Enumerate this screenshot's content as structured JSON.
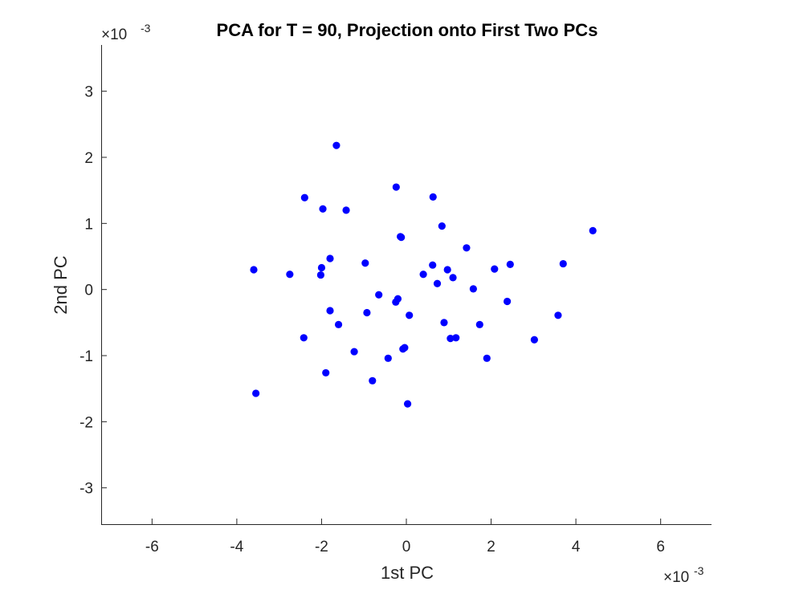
{
  "chart_data": {
    "type": "scatter",
    "title": "PCA for T = 90, Projection onto First Two PCs",
    "xlabel": "1st PC",
    "ylabel": "2nd PC",
    "x_exponent": {
      "base": "×10",
      "power": "-3"
    },
    "y_exponent": {
      "base": "×10",
      "power": "-3"
    },
    "xlim": [
      -7.2,
      7.2
    ],
    "ylim": [
      -3.55,
      3.7
    ],
    "xticks": [
      -6,
      -4,
      -2,
      0,
      2,
      4,
      6
    ],
    "xtick_labels": [
      "-6",
      "-4",
      "-2",
      "0",
      "2",
      "4",
      "6"
    ],
    "yticks": [
      -3,
      -2,
      -1,
      0,
      1,
      2,
      3
    ],
    "ytick_labels": [
      "-3",
      "-2",
      "-1",
      "0",
      "1",
      "2",
      "3"
    ],
    "grid": false,
    "marker_color": "#0000FF",
    "points": [
      {
        "x": -1.65,
        "y": 2.18
      },
      {
        "x": -2.4,
        "y": 1.39
      },
      {
        "x": -1.97,
        "y": 1.22
      },
      {
        "x": -1.42,
        "y": 1.2
      },
      {
        "x": -0.24,
        "y": 1.55
      },
      {
        "x": 0.63,
        "y": 1.4
      },
      {
        "x": 0.84,
        "y": 0.96
      },
      {
        "x": -0.14,
        "y": 0.8
      },
      {
        "x": -0.12,
        "y": 0.79
      },
      {
        "x": 4.4,
        "y": 0.89
      },
      {
        "x": 1.42,
        "y": 0.63
      },
      {
        "x": -3.6,
        "y": 0.3
      },
      {
        "x": -2.75,
        "y": 0.23
      },
      {
        "x": -1.8,
        "y": 0.47
      },
      {
        "x": -2.0,
        "y": 0.33
      },
      {
        "x": -2.02,
        "y": 0.22
      },
      {
        "x": -0.97,
        "y": 0.4
      },
      {
        "x": 0.62,
        "y": 0.37
      },
      {
        "x": 0.97,
        "y": 0.3
      },
      {
        "x": 0.4,
        "y": 0.23
      },
      {
        "x": 1.1,
        "y": 0.18
      },
      {
        "x": 0.73,
        "y": 0.09
      },
      {
        "x": 2.08,
        "y": 0.31
      },
      {
        "x": 2.45,
        "y": 0.38
      },
      {
        "x": 3.7,
        "y": 0.39
      },
      {
        "x": 1.58,
        "y": 0.01
      },
      {
        "x": -0.65,
        "y": -0.08
      },
      {
        "x": -0.2,
        "y": -0.14
      },
      {
        "x": -0.25,
        "y": -0.19
      },
      {
        "x": -1.8,
        "y": -0.32
      },
      {
        "x": -0.93,
        "y": -0.35
      },
      {
        "x": 0.07,
        "y": -0.39
      },
      {
        "x": 2.38,
        "y": -0.18
      },
      {
        "x": 3.58,
        "y": -0.39
      },
      {
        "x": -1.6,
        "y": -0.53
      },
      {
        "x": 0.89,
        "y": -0.5
      },
      {
        "x": 1.73,
        "y": -0.53
      },
      {
        "x": -2.42,
        "y": -0.73
      },
      {
        "x": 1.04,
        "y": -0.74
      },
      {
        "x": 1.17,
        "y": -0.73
      },
      {
        "x": 3.02,
        "y": -0.76
      },
      {
        "x": -1.23,
        "y": -0.94
      },
      {
        "x": -0.04,
        "y": -0.88
      },
      {
        "x": -0.08,
        "y": -0.9
      },
      {
        "x": -0.43,
        "y": -1.04
      },
      {
        "x": 1.9,
        "y": -1.04
      },
      {
        "x": -1.9,
        "y": -1.26
      },
      {
        "x": -0.8,
        "y": -1.38
      },
      {
        "x": 0.03,
        "y": -1.73
      },
      {
        "x": -3.55,
        "y": -1.57
      }
    ]
  }
}
